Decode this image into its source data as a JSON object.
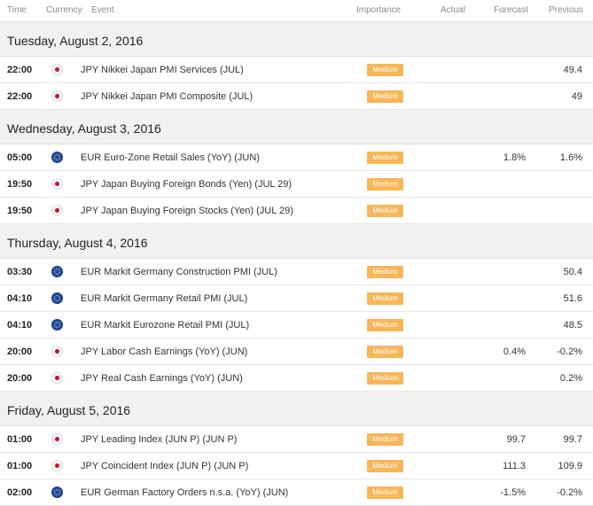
{
  "header": {
    "time": "Time",
    "currency": "Currency",
    "event": "Event",
    "importance": "Importance",
    "actual": "Actual",
    "forecast": "Forecast",
    "previous": "Previous"
  },
  "colors": {
    "importance_medium": "#f7b657",
    "jpy_flag_dot": "#c8102e",
    "eur_flag": "#1f4aa8",
    "day_bg": "#f1f1f1"
  },
  "days": [
    {
      "date": "Tuesday, August 2, 2016",
      "events": [
        {
          "time": "22:00",
          "flag": "jpy-flag-icon",
          "event": "JPY Nikkei Japan PMI Services (JUL)",
          "importance": "Medium",
          "actual": "",
          "forecast": "",
          "previous": "49.4"
        },
        {
          "time": "22:00",
          "flag": "jpy-flag-icon",
          "event": "JPY Nikkei Japan PMI Composite (JUL)",
          "importance": "Medium",
          "actual": "",
          "forecast": "",
          "previous": "49"
        }
      ]
    },
    {
      "date": "Wednesday, August 3, 2016",
      "events": [
        {
          "time": "05:00",
          "flag": "eur-flag-icon",
          "event": "EUR Euro-Zone Retail Sales (YoY) (JUN)",
          "importance": "Medium",
          "actual": "",
          "forecast": "1.8%",
          "previous": "1.6%"
        },
        {
          "time": "19:50",
          "flag": "jpy-flag-icon",
          "event": "JPY Japan Buying Foreign Bonds (Yen) (JUL 29)",
          "importance": "Medium",
          "actual": "",
          "forecast": "",
          "previous": ""
        },
        {
          "time": "19:50",
          "flag": "jpy-flag-icon",
          "event": "JPY Japan Buying Foreign Stocks (Yen) (JUL 29)",
          "importance": "Medium",
          "actual": "",
          "forecast": "",
          "previous": ""
        }
      ]
    },
    {
      "date": "Thursday, August 4, 2016",
      "events": [
        {
          "time": "03:30",
          "flag": "eur-flag-icon",
          "event": "EUR Markit Germany Construction PMI (JUL)",
          "importance": "Medium",
          "actual": "",
          "forecast": "",
          "previous": "50.4"
        },
        {
          "time": "04:10",
          "flag": "eur-flag-icon",
          "event": "EUR Markit Germany Retail PMI (JUL)",
          "importance": "Medium",
          "actual": "",
          "forecast": "",
          "previous": "51.6"
        },
        {
          "time": "04:10",
          "flag": "eur-flag-icon",
          "event": "EUR Markit Eurozone Retail PMI (JUL)",
          "importance": "Medium",
          "actual": "",
          "forecast": "",
          "previous": "48.5"
        },
        {
          "time": "20:00",
          "flag": "jpy-flag-icon",
          "event": "JPY Labor Cash Earnings (YoY) (JUN)",
          "importance": "Medium",
          "actual": "",
          "forecast": "0.4%",
          "previous": "-0.2%"
        },
        {
          "time": "20:00",
          "flag": "jpy-flag-icon",
          "event": "JPY Real Cash Earnings (YoY) (JUN)",
          "importance": "Medium",
          "actual": "",
          "forecast": "",
          "previous": "0.2%"
        }
      ]
    },
    {
      "date": "Friday, August 5, 2016",
      "events": [
        {
          "time": "01:00",
          "flag": "jpy-flag-icon",
          "event": "JPY Leading Index (JUN P) (JUN P)",
          "importance": "Medium",
          "actual": "",
          "forecast": "99.7",
          "previous": "99.7"
        },
        {
          "time": "01:00",
          "flag": "jpy-flag-icon",
          "event": "JPY Coincident Index (JUN P) (JUN P)",
          "importance": "Medium",
          "actual": "",
          "forecast": "111.3",
          "previous": "109.9"
        },
        {
          "time": "02:00",
          "flag": "eur-flag-icon",
          "event": "EUR German Factory Orders n.s.a. (YoY) (JUN)",
          "importance": "Medium",
          "actual": "",
          "forecast": "-1.5%",
          "previous": "-0.2%"
        }
      ]
    }
  ]
}
